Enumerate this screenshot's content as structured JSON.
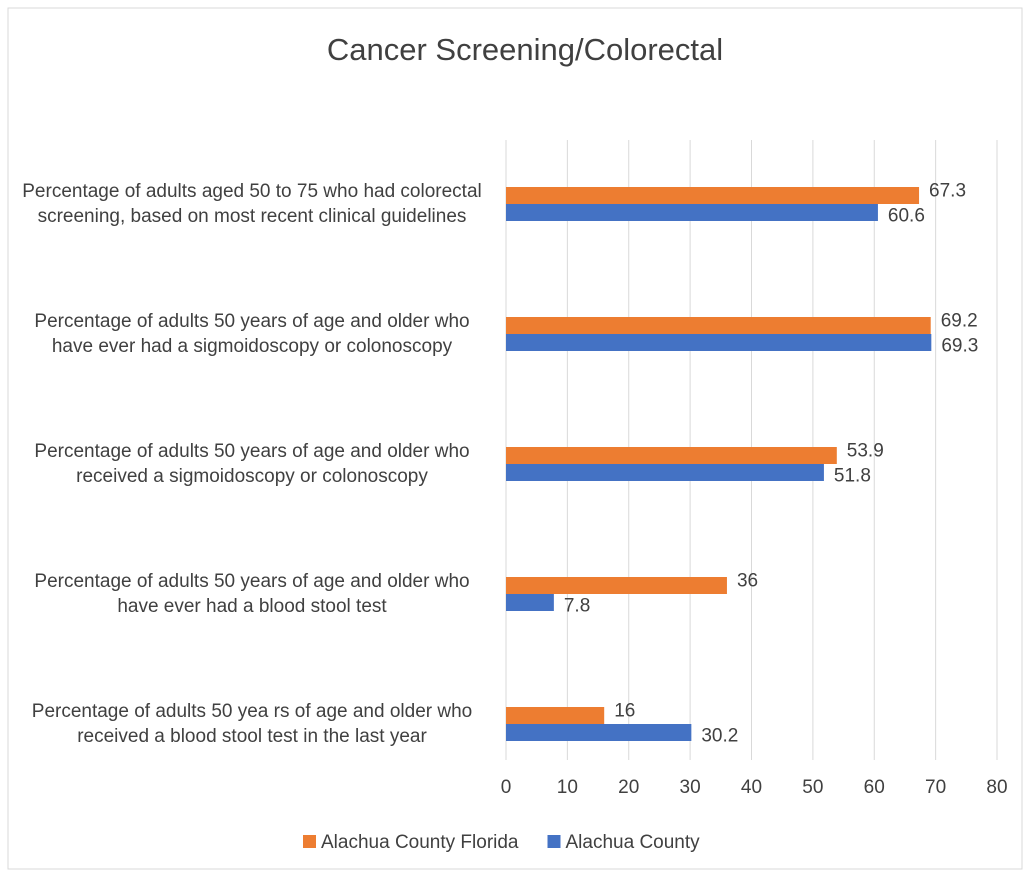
{
  "chart_data": {
    "type": "bar",
    "orientation": "horizontal",
    "title": "Cancer  Screening/Colorectal",
    "categories": [
      "Percentage of adults aged 50 to 75 who had colorectal screening, based on most recent clinical guidelines",
      "Percentage of adults 50 years of age and older who have ever had a sigmoidoscopy or colonoscopy",
      "Percentage of adults 50 years of age and older who received a sigmoidoscopy or colonoscopy",
      "Percentage of adults 50 years of age and older who have ever had a blood stool test",
      "Percentage of adults 50 yea rs of age and older who received a blood stool test in the last year"
    ],
    "series": [
      {
        "name": "Alachua County Florida",
        "color": "#ED7D31",
        "values": [
          67.3,
          69.2,
          53.9,
          36,
          16
        ]
      },
      {
        "name": "Alachua County",
        "color": "#4472C4",
        "values": [
          60.6,
          69.3,
          51.8,
          7.8,
          30.2
        ]
      }
    ],
    "xlim": [
      0,
      80
    ],
    "xticks": [
      0,
      10,
      20,
      30,
      40,
      50,
      60,
      70,
      80
    ],
    "grid": true,
    "legend": "bottom"
  }
}
